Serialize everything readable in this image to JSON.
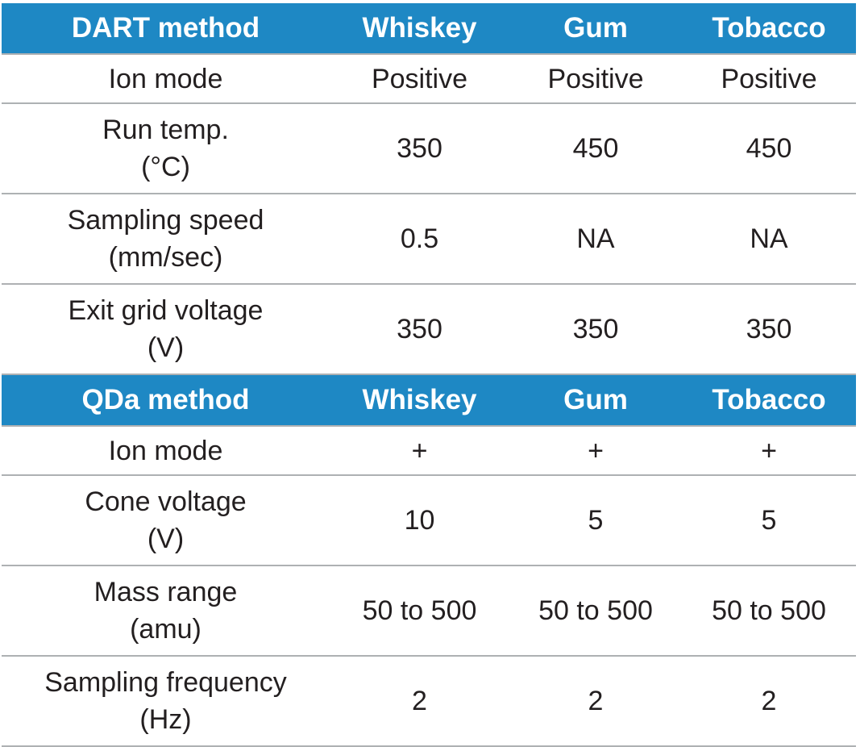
{
  "dart": {
    "header": [
      "DART method",
      "Whiskey",
      "Gum",
      "Tobacco"
    ],
    "rows": [
      {
        "label": [
          "Ion mode"
        ],
        "values": [
          "Positive",
          "Positive",
          "Positive"
        ]
      },
      {
        "label": [
          "Run temp.",
          "(°C)"
        ],
        "values": [
          "350",
          "450",
          "450"
        ]
      },
      {
        "label": [
          "Sampling speed",
          "(mm/sec)"
        ],
        "values": [
          "0.5",
          "NA",
          "NA"
        ]
      },
      {
        "label": [
          "Exit grid voltage",
          "(V)"
        ],
        "values": [
          "350",
          "350",
          "350"
        ]
      }
    ]
  },
  "qda": {
    "header": [
      "QDa method",
      "Whiskey",
      "Gum",
      "Tobacco"
    ],
    "rows": [
      {
        "label": [
          "Ion mode"
        ],
        "values": [
          "+",
          "+",
          "+"
        ]
      },
      {
        "label": [
          "Cone voltage",
          "(V)"
        ],
        "values": [
          "10",
          "5",
          "5"
        ]
      },
      {
        "label": [
          "Mass range",
          "(amu)"
        ],
        "values": [
          "50 to 500",
          "50 to 500",
          "50 to 500"
        ]
      },
      {
        "label": [
          "Sampling frequency",
          "(Hz)"
        ],
        "values": [
          "2",
          "2",
          "2"
        ]
      }
    ]
  },
  "colors": {
    "header_background": "#1e88c4",
    "header_text": "#ffffff",
    "divider": "#aeb1b3"
  }
}
